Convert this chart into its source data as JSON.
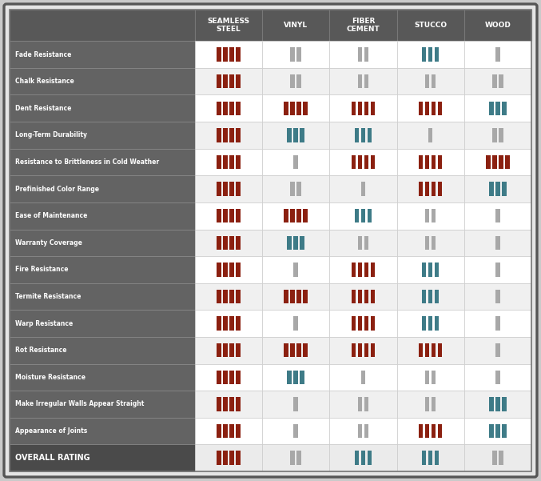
{
  "columns": [
    "SEAMLESS\nSTEEL",
    "VINYL",
    "FIBER\nCEMENT",
    "STUCCO",
    "WOOD"
  ],
  "rows": [
    "Fade Resistance",
    "Chalk Resistance",
    "Dent Resistance",
    "Long-Term Durability",
    "Resistance to Brittleness in Cold Weather",
    "Prefinished Color Range",
    "Ease of Maintenance",
    "Warranty Coverage",
    "Fire Resistance",
    "Termite Resistance",
    "Warp Resistance",
    "Rot Resistance",
    "Moisture Resistance",
    "Make Irregular Walls Appear Straight",
    "Appearance of Joints",
    "OVERALL RATING"
  ],
  "data": [
    [
      [
        4,
        "red"
      ],
      [
        2,
        "gray"
      ],
      [
        2,
        "gray"
      ],
      [
        3,
        "teal"
      ],
      [
        1,
        "gray"
      ]
    ],
    [
      [
        4,
        "red"
      ],
      [
        2,
        "gray"
      ],
      [
        2,
        "gray"
      ],
      [
        2,
        "gray"
      ],
      [
        2,
        "gray"
      ]
    ],
    [
      [
        4,
        "red"
      ],
      [
        4,
        "red"
      ],
      [
        4,
        "red"
      ],
      [
        4,
        "red"
      ],
      [
        3,
        "teal"
      ]
    ],
    [
      [
        4,
        "red"
      ],
      [
        3,
        "teal"
      ],
      [
        3,
        "teal"
      ],
      [
        1,
        "gray"
      ],
      [
        2,
        "gray"
      ]
    ],
    [
      [
        4,
        "red"
      ],
      [
        1,
        "gray"
      ],
      [
        4,
        "red"
      ],
      [
        4,
        "red"
      ],
      [
        4,
        "red"
      ]
    ],
    [
      [
        4,
        "red"
      ],
      [
        2,
        "gray"
      ],
      [
        1,
        "gray"
      ],
      [
        4,
        "red"
      ],
      [
        3,
        "teal"
      ]
    ],
    [
      [
        4,
        "red"
      ],
      [
        4,
        "red"
      ],
      [
        3,
        "teal"
      ],
      [
        2,
        "gray"
      ],
      [
        1,
        "gray"
      ]
    ],
    [
      [
        4,
        "red"
      ],
      [
        3,
        "teal"
      ],
      [
        2,
        "gray"
      ],
      [
        2,
        "gray"
      ],
      [
        1,
        "gray"
      ]
    ],
    [
      [
        4,
        "red"
      ],
      [
        1,
        "gray"
      ],
      [
        4,
        "red"
      ],
      [
        3,
        "teal"
      ],
      [
        1,
        "gray"
      ]
    ],
    [
      [
        4,
        "red"
      ],
      [
        4,
        "red"
      ],
      [
        4,
        "red"
      ],
      [
        3,
        "teal"
      ],
      [
        1,
        "gray"
      ]
    ],
    [
      [
        4,
        "red"
      ],
      [
        1,
        "gray"
      ],
      [
        4,
        "red"
      ],
      [
        3,
        "teal"
      ],
      [
        1,
        "gray"
      ]
    ],
    [
      [
        4,
        "red"
      ],
      [
        4,
        "red"
      ],
      [
        4,
        "red"
      ],
      [
        4,
        "red"
      ],
      [
        1,
        "gray"
      ]
    ],
    [
      [
        4,
        "red"
      ],
      [
        3,
        "teal"
      ],
      [
        1,
        "gray"
      ],
      [
        2,
        "gray"
      ],
      [
        1,
        "gray"
      ]
    ],
    [
      [
        4,
        "red"
      ],
      [
        1,
        "gray"
      ],
      [
        2,
        "gray"
      ],
      [
        2,
        "gray"
      ],
      [
        3,
        "teal"
      ]
    ],
    [
      [
        4,
        "red"
      ],
      [
        1,
        "gray"
      ],
      [
        2,
        "gray"
      ],
      [
        4,
        "red"
      ],
      [
        3,
        "teal"
      ]
    ],
    [
      [
        4,
        "red"
      ],
      [
        2,
        "gray"
      ],
      [
        3,
        "teal"
      ],
      [
        3,
        "teal"
      ],
      [
        2,
        "gray"
      ]
    ]
  ],
  "colors": {
    "red": "#8B2010",
    "teal": "#3E7B87",
    "gray": "#A8A8A8"
  },
  "bg_header": "#585858",
  "bg_label": "#636363",
  "bg_overall_label": "#4A4A4A",
  "bg_data_white": "#FFFFFF",
  "bg_data_light": "#F0F0F0",
  "bg_overall_data": "#EBEBEB",
  "outer_bg": "#CACACA",
  "inner_bg": "#E5E5E5",
  "header_fontsize": 6.5,
  "label_fontsize": 5.5,
  "overall_fontsize": 7.0
}
